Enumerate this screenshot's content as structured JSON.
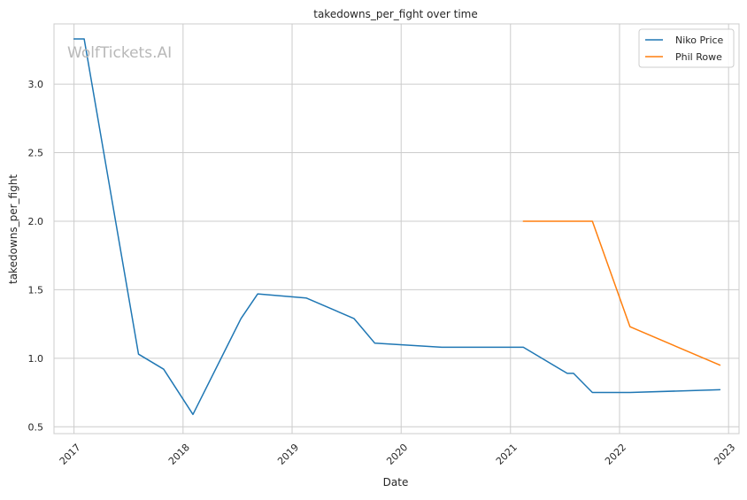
{
  "chart_data": {
    "type": "line",
    "title": "takedowns_per_fight over time",
    "xlabel": "Date",
    "ylabel": "takedowns_per_fight",
    "watermark": "WolfTickets.AI",
    "x_axis": {
      "scale": "date",
      "range": [
        "2016-10-26",
        "2023-02-05"
      ],
      "ticks": [
        {
          "label": "2017",
          "value": "2017-01-01"
        },
        {
          "label": "2018",
          "value": "2018-01-01"
        },
        {
          "label": "2019",
          "value": "2019-01-01"
        },
        {
          "label": "2020",
          "value": "2020-01-01"
        },
        {
          "label": "2021",
          "value": "2021-01-01"
        },
        {
          "label": "2022",
          "value": "2022-01-01"
        },
        {
          "label": "2023",
          "value": "2023-01-01"
        }
      ]
    },
    "y_axis": {
      "range": [
        0.45,
        3.44
      ],
      "ticks": [
        {
          "label": "0.5",
          "value": 0.5
        },
        {
          "label": "1.0",
          "value": 1.0
        },
        {
          "label": "1.5",
          "value": 1.5
        },
        {
          "label": "2.0",
          "value": 2.0
        },
        {
          "label": "2.5",
          "value": 2.5
        },
        {
          "label": "3.0",
          "value": 3.0
        }
      ]
    },
    "grid": true,
    "legend_position": "top-right",
    "series": [
      {
        "name": "Niko Price",
        "color": "#1f77b4",
        "points": [
          {
            "x": "2017-01-01",
            "y": 3.33
          },
          {
            "x": "2017-02-04",
            "y": 3.33
          },
          {
            "x": "2017-08-05",
            "y": 1.03
          },
          {
            "x": "2017-10-28",
            "y": 0.92
          },
          {
            "x": "2018-02-03",
            "y": 0.59
          },
          {
            "x": "2018-07-14",
            "y": 1.29
          },
          {
            "x": "2018-09-08",
            "y": 1.47
          },
          {
            "x": "2019-02-17",
            "y": 1.44
          },
          {
            "x": "2019-07-27",
            "y": 1.29
          },
          {
            "x": "2019-10-05",
            "y": 1.11
          },
          {
            "x": "2020-05-16",
            "y": 1.08
          },
          {
            "x": "2020-09-19",
            "y": 1.08
          },
          {
            "x": "2021-02-13",
            "y": 1.08
          },
          {
            "x": "2021-07-10",
            "y": 0.89
          },
          {
            "x": "2021-07-31",
            "y": 0.89
          },
          {
            "x": "2021-10-02",
            "y": 0.75
          },
          {
            "x": "2022-02-05",
            "y": 0.75
          },
          {
            "x": "2022-12-03",
            "y": 0.77
          }
        ]
      },
      {
        "name": "Phil Rowe",
        "color": "#ff7f0e",
        "points": [
          {
            "x": "2021-02-13",
            "y": 2.0
          },
          {
            "x": "2021-10-02",
            "y": 2.0
          },
          {
            "x": "2022-02-05",
            "y": 1.23
          },
          {
            "x": "2022-12-03",
            "y": 0.95
          }
        ]
      }
    ]
  }
}
